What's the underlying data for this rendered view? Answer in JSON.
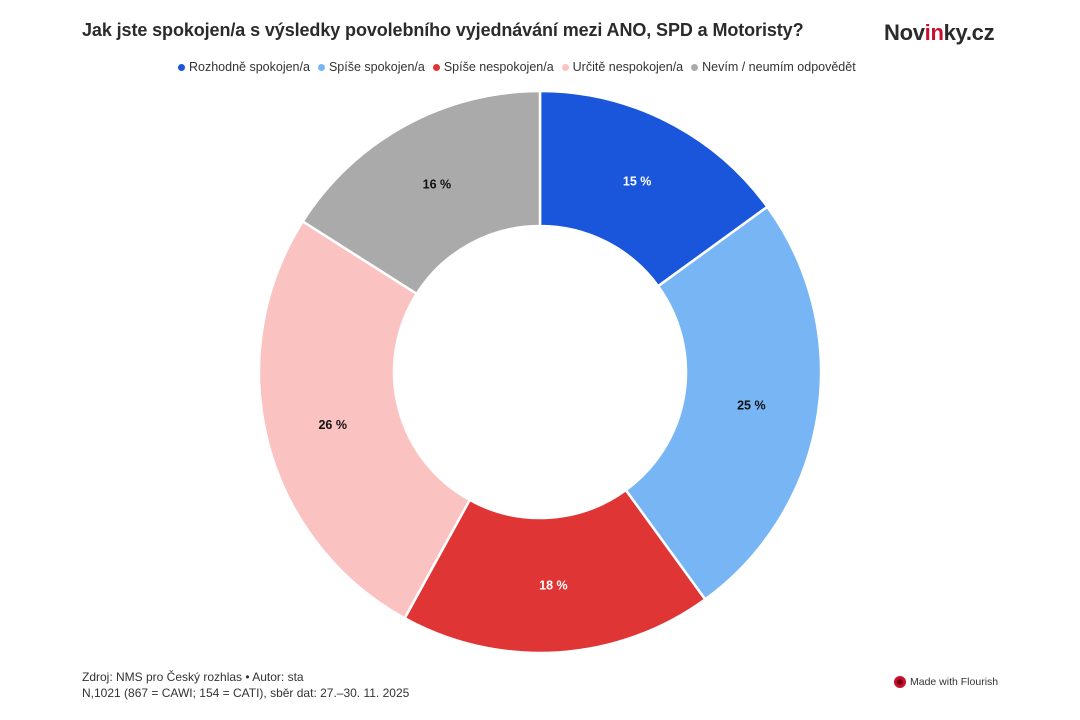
{
  "brand": {
    "prefix": "Nov",
    "accent": "in",
    "suffix": "ky.cz"
  },
  "colors": {
    "rozhodne_spokojen": "#1a56db",
    "spise_spokojen": "#78b5f5",
    "spise_nespokojen": "#e03535",
    "urcite_nespokojen": "#fbc2c2",
    "nevim": "#aaaaaa"
  },
  "chart_data": {
    "type": "pie",
    "variant": "donut",
    "title": "Jak jste spokojen/a s výsledky povolebního vyjednávání mezi ANO, SPD a Motoristy?",
    "legend_position": "top",
    "categories": [
      "Rozhodně spokojen/a",
      "Spíše spokojen/a",
      "Spíše nespokojen/a",
      "Určitě nespokojen/a",
      "Nevím / neumím odpovědět"
    ],
    "values": [
      15,
      25,
      18,
      26,
      16
    ],
    "labels": [
      "15 %",
      "25 %",
      "18 %",
      "26 %",
      "16 %"
    ],
    "slice_colors": [
      "#1a56db",
      "#78b5f5",
      "#e03535",
      "#fbc2c2",
      "#aaaaaa"
    ],
    "label_colors": [
      "#ffffff",
      "#111111",
      "#ffffff",
      "#111111",
      "#111111"
    ]
  },
  "footer": {
    "source": "Zdroj: NMS pro Český rozhlas • Autor: sta",
    "sample": "N,1021 (867 = CAWI; 154 = CATI), sběr dat: 27.–30. 11. 2025"
  },
  "credit": "Made with Flourish"
}
